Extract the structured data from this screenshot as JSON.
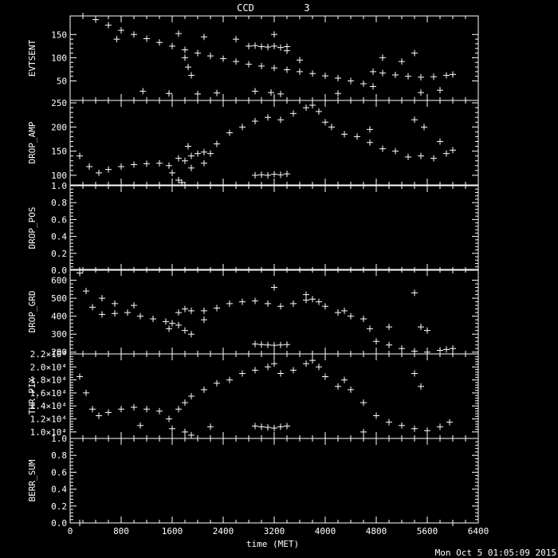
{
  "title": "CCD",
  "ccd_number": "3",
  "timestamp": "Mon Oct  5 01:05:09 2015",
  "colors": {
    "background": "#000000",
    "foreground": "#ffffff"
  },
  "chart_data": {
    "type": "scatter",
    "xlabel": "time (MET)",
    "xlim": [
      0,
      6400
    ],
    "xticks": [
      0,
      800,
      1600,
      2400,
      3200,
      4000,
      4800,
      5600,
      6400
    ],
    "xtick_labels": [
      "0",
      "800",
      "1600",
      "2400",
      "3200",
      "4000",
      "4800",
      "5600",
      "6400"
    ],
    "marker": "plus",
    "panels": [
      {
        "ylabel": "EVTSENT",
        "ylim": [
          8,
          190
        ],
        "yticks": [
          50,
          100,
          150
        ],
        "ytick_labels": [
          "50",
          "100",
          "150"
        ],
        "series": [
          {
            "x": [
              200,
              400,
              600,
              800,
              1000,
              1200,
              1400,
              1600,
              1800,
              2000,
              2200,
              2400,
              2600,
              2800,
              3000,
              3200,
              3400,
              3600,
              3800,
              4000,
              4200,
              4400,
              4600,
              4750
            ],
            "y": [
              195,
              182,
              170,
              159,
              150,
              141,
              133,
              125,
              117,
              110,
              104,
              98,
              92,
              86,
              82,
              78,
              74,
              70,
              66,
              61,
              56,
              50,
              44,
              38
            ]
          },
          {
            "x": [
              4750,
              4900,
              5100,
              5300,
              5500,
              5700,
              5900,
              6000
            ],
            "y": [
              70,
              67,
              63,
              60,
              58,
              59,
              62,
              64
            ]
          },
          {
            "x": [
              2800,
              2900,
              3000,
              3100,
              3200,
              3300,
              3400
            ],
            "y": [
              125,
              126,
              124,
              123,
              125,
              122,
              124
            ]
          },
          {
            "x": [
              730,
              1140,
              1550,
              1700,
              1800,
              1850,
              1900,
              2000,
              2100,
              2300,
              2600,
              2900,
              3150,
              3200,
              3300,
              3400,
              3600,
              4200,
              4900,
              5200,
              5400,
              5500,
              5800
            ],
            "y": [
              140,
              28,
              23,
              152,
              100,
              80,
              62,
              22,
              145,
              24,
              140,
              28,
              25,
              150,
              22,
              115,
              95,
              23,
              100,
              92,
              110,
              25,
              30
            ]
          }
        ]
      },
      {
        "ylabel": "DROP_AMP",
        "ylim": [
          80,
          255
        ],
        "yticks": [
          100,
          150,
          200,
          250
        ],
        "ytick_labels": [
          "100",
          "150",
          "200",
          "250"
        ],
        "series": [
          {
            "x": [
              150,
              300,
              450,
              600,
              800,
              1000,
              1200,
              1400,
              1550,
              1600,
              1700,
              1900,
              2100,
              2300,
              2500,
              2700,
              2900,
              3100,
              3300,
              3500,
              3700,
              3800,
              3900,
              4000,
              4100,
              4300,
              4500,
              4700,
              4900,
              5100,
              5300,
              5500,
              5700,
              5900,
              6000
            ],
            "y": [
              140,
              118,
              105,
              112,
              118,
              122,
              124,
              125,
              120,
              105,
              135,
              140,
              148,
              165,
              188,
              200,
              212,
              220,
              215,
              228,
              240,
              245,
              232,
              210,
              200,
              185,
              180,
              168,
              155,
              150,
              138,
              140,
              135,
              145,
              152
            ]
          },
          {
            "x": [
              2900,
              3000,
              3100,
              3200,
              3300,
              3400
            ],
            "y": [
              100,
              101,
              100,
              102,
              101,
              103
            ]
          },
          {
            "x": [
              1700,
              1750,
              1800,
              1850,
              1900,
              2000,
              2100,
              2200,
              4700,
              5400,
              5550,
              5800
            ],
            "y": [
              90,
              85,
              130,
              160,
              115,
              145,
              125,
              145,
              195,
              215,
              200,
              170
            ]
          }
        ]
      },
      {
        "ylabel": "DROP_POS",
        "ylim": [
          0,
          1
        ],
        "yticks": [
          0.0,
          0.2,
          0.4,
          0.6,
          0.8,
          1.0
        ],
        "ytick_labels": [
          "0.0",
          "0.2",
          "0.4",
          "0.6",
          "0.8",
          "1.0"
        ],
        "series": [
          {
            "x": [
              150,
              6000
            ],
            "y": [
              0,
              0
            ]
          }
        ]
      },
      {
        "ylabel": "DROP_GRD",
        "ylim": [
          190,
          660
        ],
        "yticks": [
          200,
          300,
          400,
          500,
          600
        ],
        "ytick_labels": [
          "200",
          "300",
          "400",
          "500",
          "600"
        ],
        "series": [
          {
            "x": [
              150,
              250,
              350,
              500,
              700,
              900,
              1100,
              1300,
              1500,
              1550,
              1600,
              1700,
              1800,
              1900,
              2100,
              2300,
              2500,
              2700,
              2900,
              3100,
              3300,
              3500,
              3700,
              3800,
              3900,
              4000,
              4200,
              4400,
              4600,
              4700,
              4800,
              5000,
              5200,
              5400,
              5600,
              5800,
              5900,
              6000
            ],
            "y": [
              640,
              540,
              450,
              410,
              415,
              420,
              400,
              385,
              370,
              330,
              360,
              420,
              440,
              430,
              430,
              445,
              470,
              480,
              485,
              470,
              455,
              470,
              490,
              495,
              480,
              455,
              420,
              400,
              385,
              330,
              260,
              240,
              220,
              205,
              200,
              210,
              215,
              220
            ]
          },
          {
            "x": [
              2900,
              3000,
              3100,
              3200,
              3300,
              3400
            ],
            "y": [
              245,
              242,
              240,
              238,
              240,
              242
            ]
          },
          {
            "x": [
              500,
              700,
              1000,
              1700,
              1800,
              1900,
              2100,
              3200,
              3700,
              4300,
              5000,
              5400,
              5500,
              5600
            ],
            "y": [
              500,
              470,
              460,
              350,
              320,
              300,
              380,
              560,
              520,
              430,
              340,
              530,
              340,
              320
            ]
          }
        ]
      },
      {
        "ylabel": "THR_PIX",
        "ylim": [
          9000,
          22000
        ],
        "yticks": [
          10000,
          12000,
          14000,
          16000,
          18000,
          20000,
          22000
        ],
        "ytick_labels": [
          "1.0×10⁴",
          "1.2×10⁴",
          "1.4×10⁴",
          "1.6×10⁴",
          "1.8×10⁴",
          "2.0×10⁴",
          "2.2×10⁴"
        ],
        "series": [
          {
            "x": [
              150,
              250,
              350,
              450,
              600,
              800,
              1000,
              1200,
              1400,
              1550,
              1600,
              1700,
              1800,
              1900,
              2100,
              2300,
              2500,
              2700,
              2900,
              3100,
              3300,
              3500,
              3700,
              3800,
              3900,
              4000,
              4200,
              4400,
              4600,
              4800,
              5000,
              5200,
              5400,
              5600,
              5800,
              5950
            ],
            "y": [
              18500,
              16000,
              13500,
              12500,
              13000,
              13500,
              13800,
              13500,
              13200,
              12000,
              10500,
              13500,
              14500,
              15500,
              16500,
              17500,
              18000,
              19000,
              19500,
              20000,
              19000,
              19500,
              20500,
              21000,
              20000,
              18500,
              17000,
              16500,
              14500,
              12500,
              11500,
              11000,
              10500,
              10200,
              10800,
              11500
            ]
          },
          {
            "x": [
              2900,
              3000,
              3100,
              3200,
              3300,
              3400
            ],
            "y": [
              10900,
              10800,
              10700,
              10600,
              10800,
              10900
            ]
          },
          {
            "x": [
              1100,
              1800,
              1900,
              2200,
              3200,
              4300,
              4600,
              5400,
              5500
            ],
            "y": [
              11000,
              10000,
              9500,
              10800,
              20500,
              18000,
              10000,
              19000,
              17000
            ]
          }
        ]
      },
      {
        "ylabel": "BERR_SUM",
        "ylim": [
          0,
          1
        ],
        "yticks": [
          0.0,
          0.2,
          0.4,
          0.6,
          0.8,
          1.0
        ],
        "ytick_labels": [
          "0.0",
          "0.2",
          "0.4",
          "0.6",
          "0.8",
          "1.0"
        ],
        "series": [
          {
            "x": [
              150,
              6000
            ],
            "y": [
              0,
              0
            ]
          }
        ]
      }
    ]
  }
}
